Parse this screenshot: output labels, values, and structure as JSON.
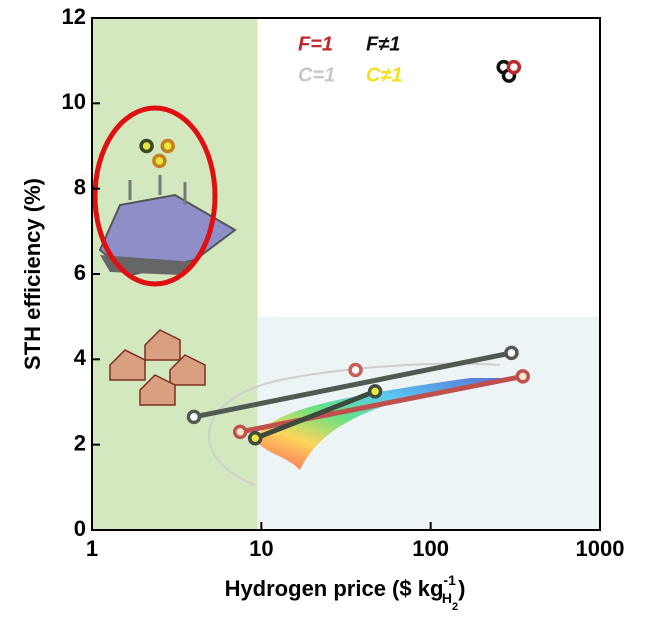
{
  "chart_data": {
    "type": "scatter",
    "xlabel": "Hydrogen price ($ kg",
    "xlabel_sup": "-1",
    "xlabel_sub": "H",
    "xlabel_subsub": "2",
    "xlabel_end": ")",
    "ylabel": "STH efficiency (%)",
    "xlim": [
      1,
      1000
    ],
    "ylim": [
      0,
      12
    ],
    "xticks": [
      1,
      10,
      100,
      1000
    ],
    "yticks": [
      0,
      2,
      4,
      6,
      8,
      10,
      12
    ],
    "xscale": "log",
    "legend": [
      {
        "label": "F=1",
        "color": "#c0262b"
      },
      {
        "label": "F≠1",
        "color": "#111111"
      },
      {
        "label": "C=1",
        "color": "#c8c8c8"
      },
      {
        "label": "C≠1",
        "color": "#f2e21c"
      }
    ],
    "regions": [
      {
        "xlim": [
          1,
          9.5
        ],
        "ylim": [
          0,
          12
        ],
        "color": "#d3e8bf"
      },
      {
        "xlim": [
          9.5,
          1000
        ],
        "ylim": [
          0,
          5
        ],
        "color": "#edf4f6"
      }
    ],
    "series": [
      {
        "x": [
          4,
          300
        ],
        "values": [
          2.65,
          4.15
        ],
        "color": "#505a50",
        "marker_fill": "#ffffff",
        "line": true
      },
      {
        "x": [
          7.5,
          350
        ],
        "values": [
          2.3,
          3.6
        ],
        "color": "#c0504d",
        "marker_fill": "#f6e3c8",
        "line": true
      },
      {
        "x": [
          9.2,
          47
        ],
        "values": [
          2.15,
          3.25
        ],
        "color": "#3d4a3d",
        "marker_fill": "#e8e640",
        "line": true
      },
      {
        "x": [
          36
        ],
        "values": [
          3.75
        ],
        "color": "#c86058",
        "marker_fill": "#ffffff",
        "line": false
      },
      {
        "x": [
          270,
          290
        ],
        "values": [
          10.85,
          10.65
        ],
        "color": "#111111",
        "marker_fill": "#ffffff",
        "line": false
      },
      {
        "x": [
          310
        ],
        "values": [
          10.85
        ],
        "color": "#c0262b",
        "marker_fill": "#ffffff",
        "line": false
      },
      {
        "x": [
          2.1
        ],
        "values": [
          9.0
        ],
        "color": "#3a4a20",
        "marker_fill": "#e8e640",
        "line": false
      },
      {
        "x": [
          2.8,
          2.5
        ],
        "values": [
          9.0,
          8.65
        ],
        "color": "#c5801a",
        "marker_fill": "#e8e640",
        "line": false
      }
    ]
  }
}
